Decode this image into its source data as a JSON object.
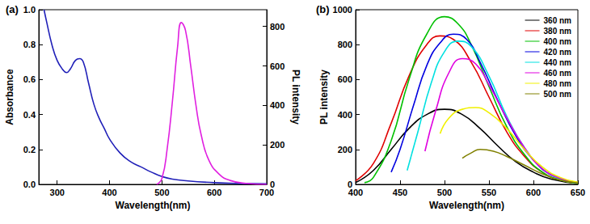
{
  "chart_data": [
    {
      "type": "line",
      "title": "(a)",
      "xlabel": "Wavelength(nm)",
      "ylabel": "Absorbance",
      "y2label": "PL intensity",
      "xlim": [
        265,
        700
      ],
      "xticks": [
        300,
        400,
        500,
        600,
        700
      ],
      "ylim": [
        0,
        1
      ],
      "yticks": [
        {
          "value": 0,
          "label": "0.0"
        },
        0.2,
        0.4,
        0.6,
        0.8,
        {
          "value": 1,
          "label": "1.0"
        }
      ],
      "y2lim": [
        0,
        885
      ],
      "y2ticks": [
        0,
        200,
        400,
        600,
        800
      ],
      "grid": false,
      "series": [
        {
          "color": "#2020b8",
          "x": [
            275,
            280,
            290,
            300,
            310,
            318,
            325,
            335,
            343,
            350,
            360,
            370,
            380,
            390,
            400,
            420,
            440,
            460,
            480,
            500,
            520,
            550,
            600,
            650,
            700
          ],
          "values": [
            1.0,
            0.93,
            0.8,
            0.71,
            0.66,
            0.64,
            0.66,
            0.71,
            0.72,
            0.7,
            0.58,
            0.46,
            0.38,
            0.32,
            0.26,
            0.18,
            0.13,
            0.1,
            0.07,
            0.045,
            0.03,
            0.02,
            0.01,
            0.005,
            0.003
          ]
        },
        {
          "color": "#e020e0",
          "axis": "y2",
          "x": [
            490,
            500,
            510,
            520,
            530,
            537,
            545,
            555,
            565,
            575,
            590,
            610,
            630,
            660,
            700
          ],
          "values": [
            0,
            30,
            180,
            420,
            700,
            820,
            780,
            600,
            400,
            250,
            120,
            50,
            20,
            5,
            0
          ]
        }
      ]
    },
    {
      "type": "line",
      "title": "(b)",
      "xlabel": "Wavelength(nm)",
      "ylabel": "PL intensity",
      "xlim": [
        400,
        650
      ],
      "xticks": [
        400,
        450,
        500,
        550,
        600,
        650
      ],
      "ylim": [
        0,
        1000
      ],
      "yticks": [
        0,
        200,
        400,
        600,
        800,
        1000
      ],
      "grid": false,
      "legend": "upper right",
      "series": [
        {
          "name": "360 nm",
          "color": "#000000",
          "x": [
            400,
            420,
            440,
            460,
            480,
            500,
            520,
            540,
            560,
            580,
            600,
            620,
            650
          ],
          "values": [
            10,
            80,
            200,
            320,
            400,
            430,
            400,
            320,
            220,
            130,
            70,
            30,
            5
          ]
        },
        {
          "name": "380 nm",
          "color": "#e00000",
          "x": [
            400,
            420,
            440,
            460,
            480,
            495,
            510,
            530,
            550,
            570,
            590,
            610,
            630,
            650
          ],
          "values": [
            20,
            120,
            350,
            620,
            800,
            850,
            830,
            700,
            500,
            300,
            160,
            70,
            25,
            5
          ]
        },
        {
          "name": "400 nm",
          "color": "#00c000",
          "x": [
            410,
            420,
            440,
            460,
            480,
            500,
            515,
            530,
            550,
            570,
            590,
            610,
            630,
            650
          ],
          "values": [
            10,
            40,
            250,
            600,
            860,
            960,
            920,
            800,
            560,
            330,
            170,
            70,
            25,
            5
          ]
        },
        {
          "name": "420 nm",
          "color": "#0000e0",
          "x": [
            440,
            450,
            465,
            480,
            495,
            510,
            525,
            540,
            560,
            580,
            600,
            620,
            650
          ],
          "values": [
            70,
            200,
            450,
            680,
            810,
            860,
            830,
            700,
            480,
            280,
            140,
            55,
            10
          ]
        },
        {
          "name": "440 nm",
          "color": "#00e0e0",
          "x": [
            458,
            470,
            485,
            500,
            515,
            530,
            550,
            570,
            590,
            610,
            630,
            650
          ],
          "values": [
            80,
            300,
            580,
            760,
            820,
            790,
            620,
            390,
            210,
            90,
            30,
            8
          ]
        },
        {
          "name": "460 nm",
          "color": "#e000e0",
          "x": [
            478,
            490,
            505,
            520,
            535,
            550,
            570,
            590,
            610,
            630,
            650
          ],
          "values": [
            190,
            420,
            640,
            720,
            690,
            570,
            380,
            210,
            90,
            35,
            10
          ]
        },
        {
          "name": "480 nm",
          "color": "#f0f000",
          "x": [
            495,
            505,
            520,
            535,
            550,
            570,
            590,
            610,
            630,
            650
          ],
          "values": [
            290,
            380,
            430,
            440,
            410,
            320,
            200,
            100,
            40,
            12
          ]
        },
        {
          "name": "500 nm",
          "color": "#808000",
          "x": [
            520,
            530,
            540,
            555,
            570,
            590,
            610,
            630,
            650
          ],
          "values": [
            150,
            180,
            200,
            190,
            160,
            110,
            60,
            25,
            8
          ]
        }
      ]
    }
  ]
}
